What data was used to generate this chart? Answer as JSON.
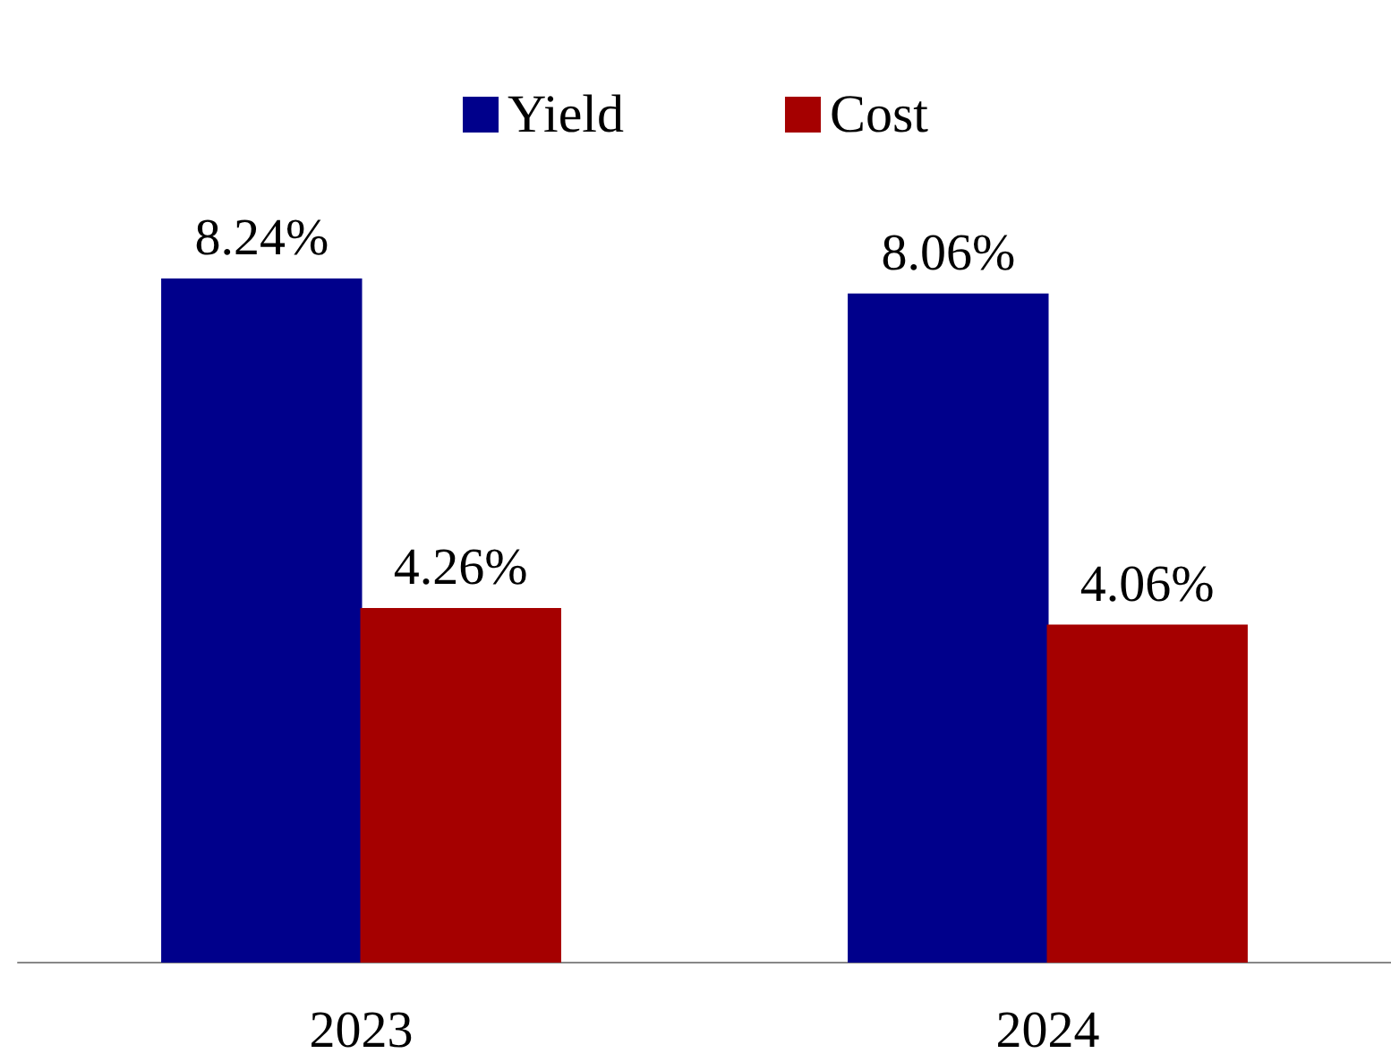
{
  "chart_data": {
    "type": "bar",
    "categories": [
      "2023",
      "2024"
    ],
    "series": [
      {
        "name": "Yield",
        "color": "#00008b",
        "values": [
          8.24,
          8.06
        ],
        "value_labels": [
          "8.24%",
          "8.06%"
        ]
      },
      {
        "name": "Cost",
        "color": "#a50000",
        "values": [
          4.26,
          4.06
        ],
        "value_labels": [
          "4.26%",
          "4.06%"
        ]
      }
    ],
    "tick_labels": "x",
    "legend": "top",
    "grid": false
  }
}
